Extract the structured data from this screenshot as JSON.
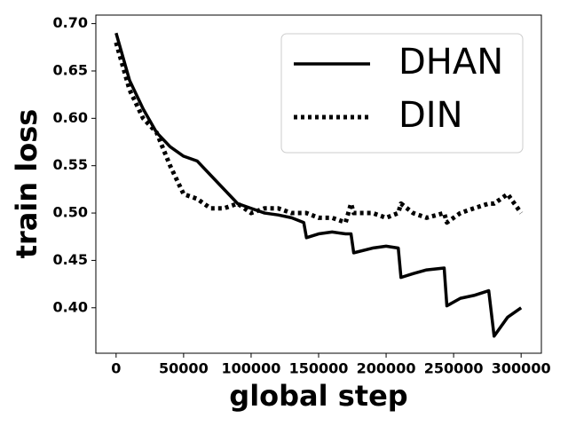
{
  "chart_data": {
    "type": "line",
    "x_label": "global step",
    "y_label": "train loss",
    "x": [
      0,
      10000,
      20000,
      30000,
      40000,
      50000,
      60000,
      70000,
      80000,
      90000,
      100000,
      110000,
      120000,
      130000,
      139000,
      141000,
      150000,
      160000,
      170000,
      174000,
      176000,
      190000,
      200000,
      209000,
      211000,
      220000,
      230000,
      243000,
      245000,
      255000,
      265000,
      276000,
      280000,
      290000,
      300000
    ],
    "series": [
      {
        "name": "DHAN",
        "color": "#000000",
        "style": "solid",
        "values": [
          0.69,
          0.64,
          0.61,
          0.585,
          0.57,
          0.56,
          0.555,
          0.54,
          0.525,
          0.51,
          0.505,
          0.5,
          0.498,
          0.495,
          0.49,
          0.474,
          0.478,
          0.48,
          0.478,
          0.478,
          0.458,
          0.463,
          0.465,
          0.463,
          0.432,
          0.436,
          0.44,
          0.442,
          0.402,
          0.41,
          0.413,
          0.418,
          0.37,
          0.39,
          0.4
        ]
      },
      {
        "name": "DIN",
        "color": "#000000",
        "style": "dotted",
        "values": [
          0.68,
          0.63,
          0.6,
          0.585,
          0.55,
          0.52,
          0.515,
          0.505,
          0.505,
          0.51,
          0.5,
          0.505,
          0.505,
          0.5,
          0.5,
          0.5,
          0.495,
          0.495,
          0.49,
          0.51,
          0.5,
          0.5,
          0.495,
          0.5,
          0.51,
          0.5,
          0.495,
          0.5,
          0.49,
          0.5,
          0.505,
          0.51,
          0.51,
          0.52,
          0.5
        ]
      }
    ],
    "xlim": [
      -15000,
      315000
    ],
    "ylim": [
      0.352,
      0.709
    ],
    "xticks": [
      0,
      50000,
      100000,
      150000,
      200000,
      250000,
      300000
    ],
    "yticks": [
      {
        "value": 0.4,
        "label": "0.40"
      },
      {
        "value": 0.45,
        "label": "0.45"
      },
      {
        "value": 0.5,
        "label": "0.50"
      },
      {
        "value": 0.55,
        "label": "0.55"
      },
      {
        "value": 0.6,
        "label": "0.60"
      },
      {
        "value": 0.65,
        "label": "0.65"
      },
      {
        "value": 0.7,
        "label": "0.70"
      }
    ],
    "legend": "upper right",
    "grid": false
  }
}
